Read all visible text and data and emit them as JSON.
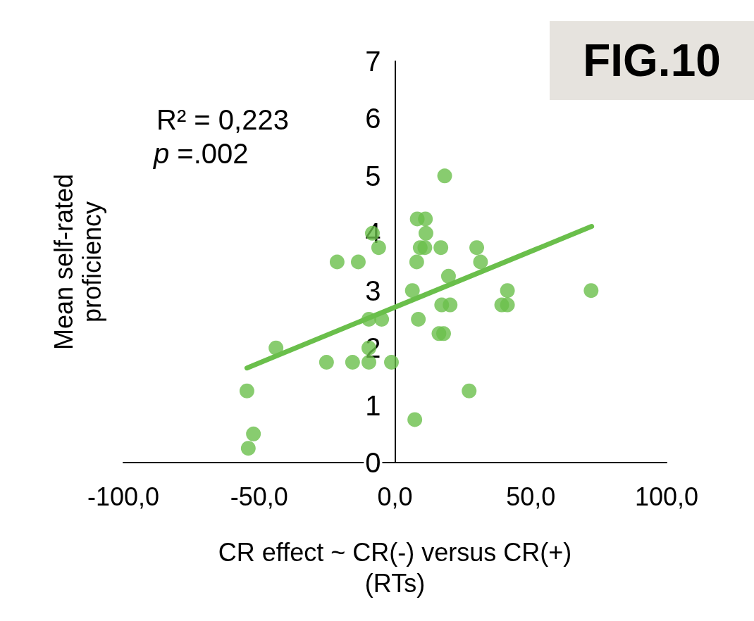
{
  "chart_data": {
    "type": "scatter",
    "xlabel": "CR effect ~ CR(-) versus CR(+)\n(RTs)",
    "ylabel": "Mean self-rated\nproficiency",
    "annotations": [
      "R² = 0,223",
      "p =.002",
      "FIG.10"
    ],
    "xlim": [
      -100,
      100
    ],
    "xticks": [
      {
        "value": -100,
        "label": "-100,0"
      },
      {
        "value": -50,
        "label": "-50,0"
      },
      {
        "value": 0,
        "label": "0,0"
      },
      {
        "value": 50,
        "label": "50,0"
      },
      {
        "value": 100,
        "label": "100,0"
      }
    ],
    "ylim": [
      0,
      7
    ],
    "yticks": [
      0,
      1,
      2,
      3,
      4,
      5,
      6,
      7
    ],
    "grid": false,
    "marker": "circle",
    "series": [
      {
        "color": "#6abf4b",
        "x": [
          -54.5,
          -52.1,
          -54,
          -43.8,
          -25.2,
          -21.3,
          -15.6,
          -13.5,
          -9.6,
          -9.6,
          -9.6,
          -8.3,
          -6,
          -4.9,
          -1.3,
          18.3,
          8.2,
          11.2,
          11.4,
          9.3,
          11,
          16.9,
          30.1,
          8,
          31.5,
          19.7,
          6.4,
          41.4,
          72.2,
          17.2,
          20.3,
          39.3,
          41.4,
          8.6,
          16.2,
          17.9,
          27.3,
          7.3
        ],
        "values": [
          1.25,
          0.5,
          0.25,
          2,
          1.75,
          3.5,
          1.75,
          3.5,
          2.5,
          2,
          1.75,
          4,
          3.75,
          2.5,
          1.75,
          5,
          4.25,
          4.25,
          4,
          3.75,
          3.75,
          3.75,
          3.75,
          3.5,
          3.5,
          3.25,
          3,
          3,
          3,
          2.75,
          2.75,
          2.75,
          2.75,
          2.5,
          2.25,
          2.25,
          1.25,
          0.75
        ]
      },
      {
        "type": "line",
        "color": "#6abf4b",
        "marker": "none",
        "line_style": "solid",
        "x": [
          -54.5,
          72.4
        ],
        "values": [
          1.65,
          4.12
        ]
      }
    ]
  }
}
